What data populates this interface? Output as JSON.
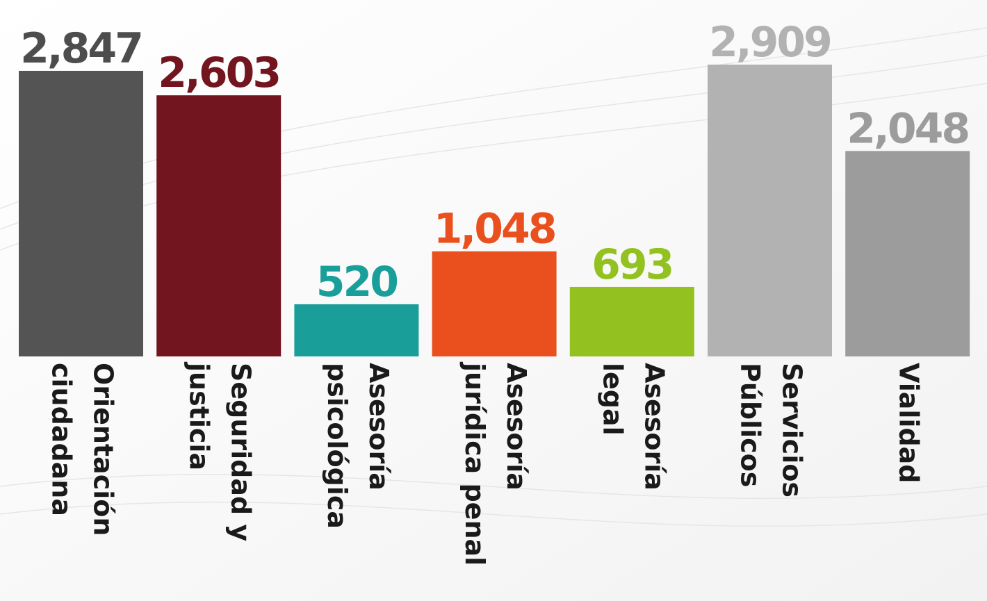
{
  "chart_data": {
    "type": "bar",
    "categories": [
      "Orientación\nciudadana",
      "Seguridad y\njusticia",
      "Asesoría\npsicológica",
      "Asesoría\njurídica penal",
      "Asesoría\nlegal",
      "Servicios\nPúblicos",
      "Vialidad"
    ],
    "values": [
      2847,
      2603,
      520,
      1048,
      693,
      2909,
      2048
    ],
    "value_labels": [
      "2,847",
      "2,603",
      "520",
      "1,048",
      "693",
      "2,909",
      "2,048"
    ],
    "colors": [
      "#545454",
      "#73151f",
      "#1a9e99",
      "#e9501e",
      "#93c11f",
      "#b2b2b2",
      "#9c9c9c"
    ],
    "label_colors": [
      "#4d4d4d",
      "#73151f",
      "#1a9e99",
      "#e9501e",
      "#93c11f",
      "#b2b2b2",
      "#9c9c9c"
    ]
  }
}
